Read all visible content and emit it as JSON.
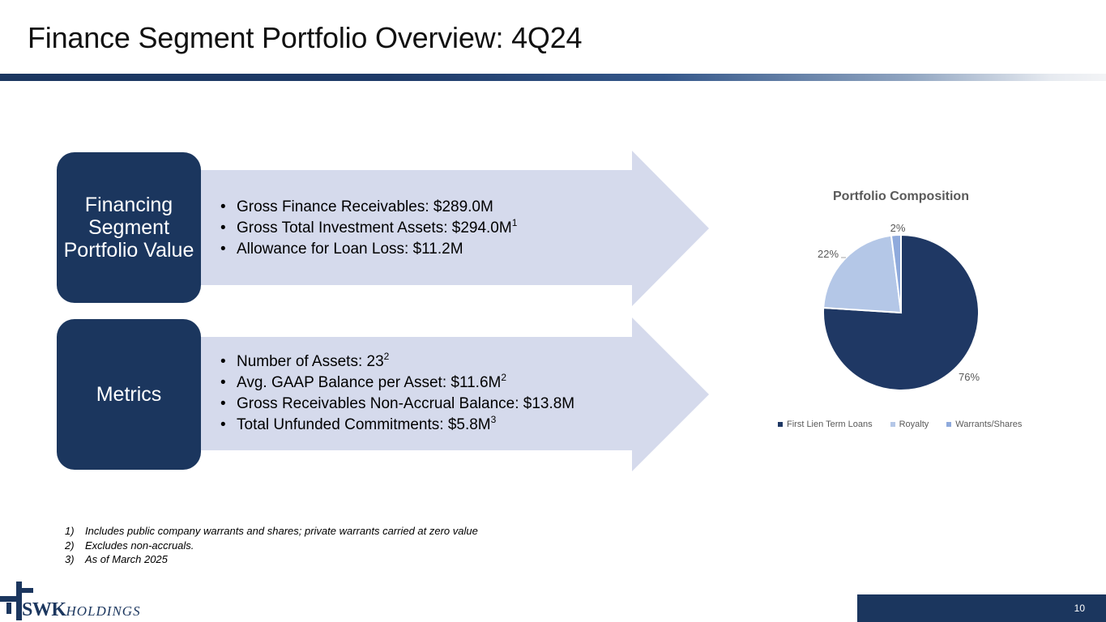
{
  "slide": {
    "title": "Finance Segment Portfolio Overview: 4Q24",
    "page_number": "10"
  },
  "sections": [
    {
      "label": "Financing Segment Portfolio Value",
      "bullets": [
        {
          "text": "Gross Finance Receivables: $289.0M",
          "sup": ""
        },
        {
          "text": "Gross Total Investment Assets: $294.0M",
          "sup": "1"
        },
        {
          "text": "Allowance for Loan Loss: $11.2M",
          "sup": ""
        }
      ]
    },
    {
      "label": "Metrics",
      "bullets": [
        {
          "text": "Number of Assets: 23",
          "sup": "2"
        },
        {
          "text": "Avg. GAAP Balance per Asset: $11.6M",
          "sup": "2"
        },
        {
          "text": "Gross Receivables Non-Accrual Balance: $13.8M",
          "sup": ""
        },
        {
          "text": "Total Unfunded Commitments: $5.8M",
          "sup": "3"
        }
      ]
    }
  ],
  "chart_data": {
    "type": "pie",
    "title": "Portfolio Composition",
    "categories": [
      "First Lien Term Loans",
      "Royalty",
      "Warrants/Shares"
    ],
    "values": [
      76,
      22,
      2
    ],
    "labels": [
      "76%",
      "22%",
      "2%"
    ],
    "colors": [
      "#1f3864",
      "#b4c7e7",
      "#8faadc"
    ],
    "legend_position": "bottom"
  },
  "footnotes": [
    {
      "num": "1)",
      "text": "Includes public company warrants and shares; private warrants carried at zero value"
    },
    {
      "num": "2)",
      "text": "Excludes non-accruals."
    },
    {
      "num": "3)",
      "text": "As of March 2025"
    }
  ],
  "logo": {
    "brand": "SWK",
    "sub": "HOLDINGS"
  }
}
